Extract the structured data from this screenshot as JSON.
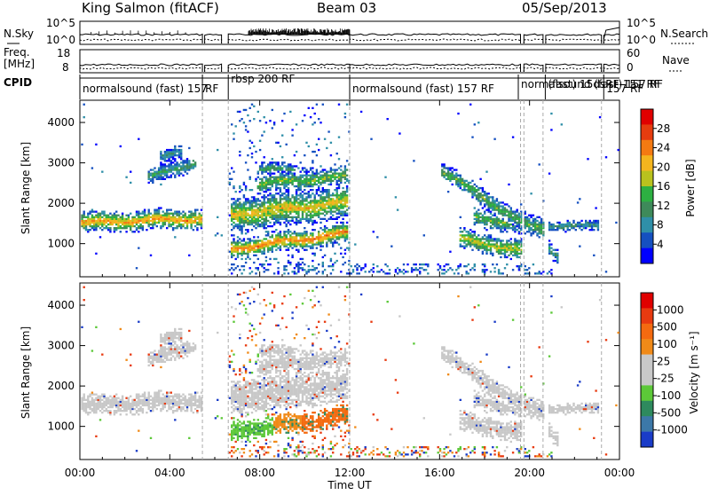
{
  "header": {
    "station": "King Salmon (fitACF)",
    "beam": "Beam 03",
    "date": "05/Sep/2013"
  },
  "strips": {
    "nsky_label": "N.Sky",
    "nsky_ticks": [
      "10^5",
      "10^0"
    ],
    "nsearch_label": "N.Search",
    "nsearch_ticks": [
      "10^5",
      "10^0"
    ],
    "freq_label_1": "Freq.",
    "freq_label_2": "[MHz]",
    "freq_ticks": [
      "18",
      "8"
    ],
    "nave_label": "Nave",
    "nave_ticks": [
      "60",
      "0"
    ],
    "cpid_label": "CPID"
  },
  "cpid_segments": [
    {
      "label": "normalsound (fast) 157",
      "start": 0.0
    },
    {
      "label": "RF",
      "start": 5.45
    },
    {
      "label": "rbsp 200 RF",
      "start": 6.6
    },
    {
      "label": "normalsound (fast) 157 RF",
      "start": 12.0
    },
    {
      "label": "normalsound (fast) 157 RF",
      "start": 19.5
    },
    {
      "label": "(fast) 15dsRF-151 RF",
      "start": 20.7
    },
    {
      "label": "157 RF",
      "start": 23.3
    }
  ],
  "chart_data": [
    {
      "type": "heatmap",
      "name": "power",
      "ylabel": "Slant Range [km]",
      "ylim": [
        180,
        4550
      ],
      "yticks": [
        "4000",
        "3000",
        "2000",
        "1000"
      ],
      "ytick_values": [
        4000,
        3000,
        2000,
        1000
      ],
      "colorbar_label": "Power [dB]",
      "colorbar_ticks": [
        "28",
        "24",
        "20",
        "16",
        "12",
        "8",
        "4"
      ],
      "colorbar_colors": [
        "#0000ff",
        "#1550c0",
        "#2f8fa8",
        "#3e8a5a",
        "#2db042",
        "#b9c21e",
        "#f4b51e",
        "#f47a12",
        "#e63c0f",
        "#e00000"
      ]
    },
    {
      "type": "heatmap",
      "name": "velocity",
      "ylabel": "Slant Range [km]",
      "ylim": [
        180,
        4550
      ],
      "yticks": [
        "4000",
        "3000",
        "2000",
        "1000"
      ],
      "ytick_values": [
        4000,
        3000,
        2000,
        1000
      ],
      "xlabel": "Time UT",
      "xticks": [
        "00:00",
        "04:00",
        "08:00",
        "12:00",
        "16:00",
        "20:00",
        "00:00"
      ],
      "xlim_hours": [
        0,
        24
      ],
      "colorbar_label": "Velocity [m s⁻¹]",
      "colorbar_ticks": [
        "1000",
        "500",
        "100",
        "25",
        "-25",
        "-100",
        "-500",
        "-1000"
      ],
      "colorbar_colors": [
        "#1a3cc8",
        "#3c78a8",
        "#2e8a5e",
        "#5cc838",
        "#c8c8c8",
        "#c8c8c8",
        "#f08a18",
        "#f46a10",
        "#e83a10",
        "#e00000"
      ]
    }
  ],
  "palette": {
    "gray": "#c8c8c8",
    "text": "#000000"
  }
}
